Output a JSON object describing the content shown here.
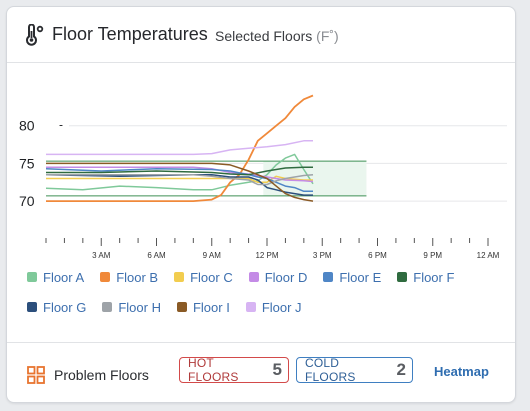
{
  "header": {
    "title": "Floor Temperatures",
    "subtitle": "Selected Floors",
    "unit": "(F˚)",
    "icon": "thermometer-icon"
  },
  "legend": [
    {
      "label": "Floor A",
      "color": "#7fc99a"
    },
    {
      "label": "Floor B",
      "color": "#f0893a"
    },
    {
      "label": "Floor C",
      "color": "#f2cd4f"
    },
    {
      "label": "Floor D",
      "color": "#c48be6"
    },
    {
      "label": "Floor E",
      "color": "#4f86c6"
    },
    {
      "label": "Floor F",
      "color": "#2f6b3f"
    },
    {
      "label": "Floor G",
      "color": "#2c4f7c"
    },
    {
      "label": "Floor H",
      "color": "#9ea3a8"
    },
    {
      "label": "Floor I",
      "color": "#8a5a25"
    },
    {
      "label": "Floor J",
      "color": "#d7b4f3"
    }
  ],
  "footer": {
    "label": "Problem Floors",
    "icon": "grid-icon",
    "hot_label": "HOT FLOORS",
    "hot_count": "5",
    "cold_label": "COLD FLOORS",
    "cold_count": "2",
    "heatmap_label": "Heatmap"
  },
  "chart_data": {
    "type": "line",
    "xlabel": "",
    "ylabel": "",
    "x_ticks": [
      "3 AM",
      "6 AM",
      "9 AM",
      "12 PM",
      "3 PM",
      "6 PM",
      "9 PM",
      "12 AM"
    ],
    "x_tick_hours": [
      3,
      6,
      9,
      12,
      15,
      18,
      21,
      24
    ],
    "xlim": [
      0,
      24
    ],
    "ylim": [
      67.5,
      85
    ],
    "y_ticks": [
      70,
      75,
      80
    ],
    "comfort_band": [
      70.7,
      75.3
    ],
    "series": [
      {
        "name": "Floor A",
        "x": [
          0,
          2,
          4,
          6,
          8,
          9,
          10,
          11,
          11.5,
          12,
          12.5,
          13,
          13.5,
          14,
          14.5
        ],
        "y": [
          71.7,
          71.5,
          72.0,
          71.8,
          71.5,
          71.5,
          72.1,
          72.5,
          72.7,
          73.5,
          74.8,
          75.7,
          76.2,
          74.2,
          72.3
        ]
      },
      {
        "name": "Floor B",
        "x": [
          0,
          6,
          8,
          9,
          9.5,
          10,
          10.5,
          11,
          11.5,
          12,
          12.5,
          13,
          13.5,
          14,
          14.5
        ],
        "y": [
          70.0,
          70.0,
          70.0,
          70.2,
          70.8,
          72.5,
          73.5,
          75.5,
          78.0,
          79.0,
          80.0,
          81.0,
          82.5,
          83.5,
          84.0
        ]
      },
      {
        "name": "Floor C",
        "x": [
          0,
          4,
          8,
          9,
          10,
          11,
          11.5,
          12,
          12.5,
          13,
          14,
          14.5
        ],
        "y": [
          73.0,
          73.0,
          73.0,
          73.0,
          73.0,
          73.0,
          72.5,
          72.5,
          73.3,
          73.0,
          72.8,
          72.8
        ]
      },
      {
        "name": "Floor D",
        "x": [
          0,
          4,
          8,
          9,
          10,
          11,
          12,
          13,
          14,
          14.5
        ],
        "y": [
          74.5,
          74.5,
          74.5,
          74.3,
          73.8,
          73.6,
          73.2,
          72.8,
          72.7,
          72.6
        ]
      },
      {
        "name": "Floor E",
        "x": [
          0,
          3,
          6,
          9,
          10,
          11,
          11.5,
          12,
          12.5,
          13,
          13.5,
          14,
          14.5
        ],
        "y": [
          74.3,
          74.0,
          74.3,
          74.2,
          74.0,
          73.5,
          73.2,
          73.0,
          72.5,
          72.0,
          71.8,
          71.3,
          71.3
        ]
      },
      {
        "name": "Floor F",
        "x": [
          0,
          3,
          6,
          9,
          10,
          11,
          12,
          12.5,
          13,
          14,
          14.5
        ],
        "y": [
          73.8,
          73.8,
          74.0,
          73.8,
          73.6,
          73.5,
          74.0,
          74.2,
          74.4,
          74.5,
          74.5
        ]
      },
      {
        "name": "Floor G",
        "x": [
          0,
          4,
          8,
          9,
          10,
          11,
          11.5,
          12,
          12.5,
          13,
          13.5,
          14,
          14.5
        ],
        "y": [
          73.5,
          73.3,
          73.5,
          73.5,
          73.2,
          73.2,
          72.8,
          71.8,
          71.5,
          71.2,
          71.0,
          70.8,
          70.8
        ]
      },
      {
        "name": "Floor H",
        "x": [
          0,
          4,
          8,
          9,
          10,
          11,
          11.5,
          12,
          12.5,
          13,
          14,
          14.5
        ],
        "y": [
          73.5,
          73.5,
          73.5,
          73.3,
          73.0,
          72.8,
          72.2,
          72.2,
          72.7,
          73.0,
          73.4,
          73.5
        ]
      },
      {
        "name": "Floor I",
        "x": [
          0,
          4,
          8,
          9,
          10,
          11,
          12,
          12.5,
          13,
          13.5,
          14,
          14.5
        ],
        "y": [
          75.0,
          75.0,
          75.0,
          75.0,
          74.8,
          74.0,
          73.0,
          72.0,
          71.0,
          70.5,
          70.2,
          70.0
        ]
      },
      {
        "name": "Floor J",
        "x": [
          0,
          4,
          8,
          9,
          10,
          11,
          12,
          13,
          14,
          14.5
        ],
        "y": [
          76.2,
          76.2,
          76.2,
          76.3,
          76.8,
          77.0,
          77.2,
          77.5,
          78.0,
          78.0
        ]
      }
    ]
  }
}
